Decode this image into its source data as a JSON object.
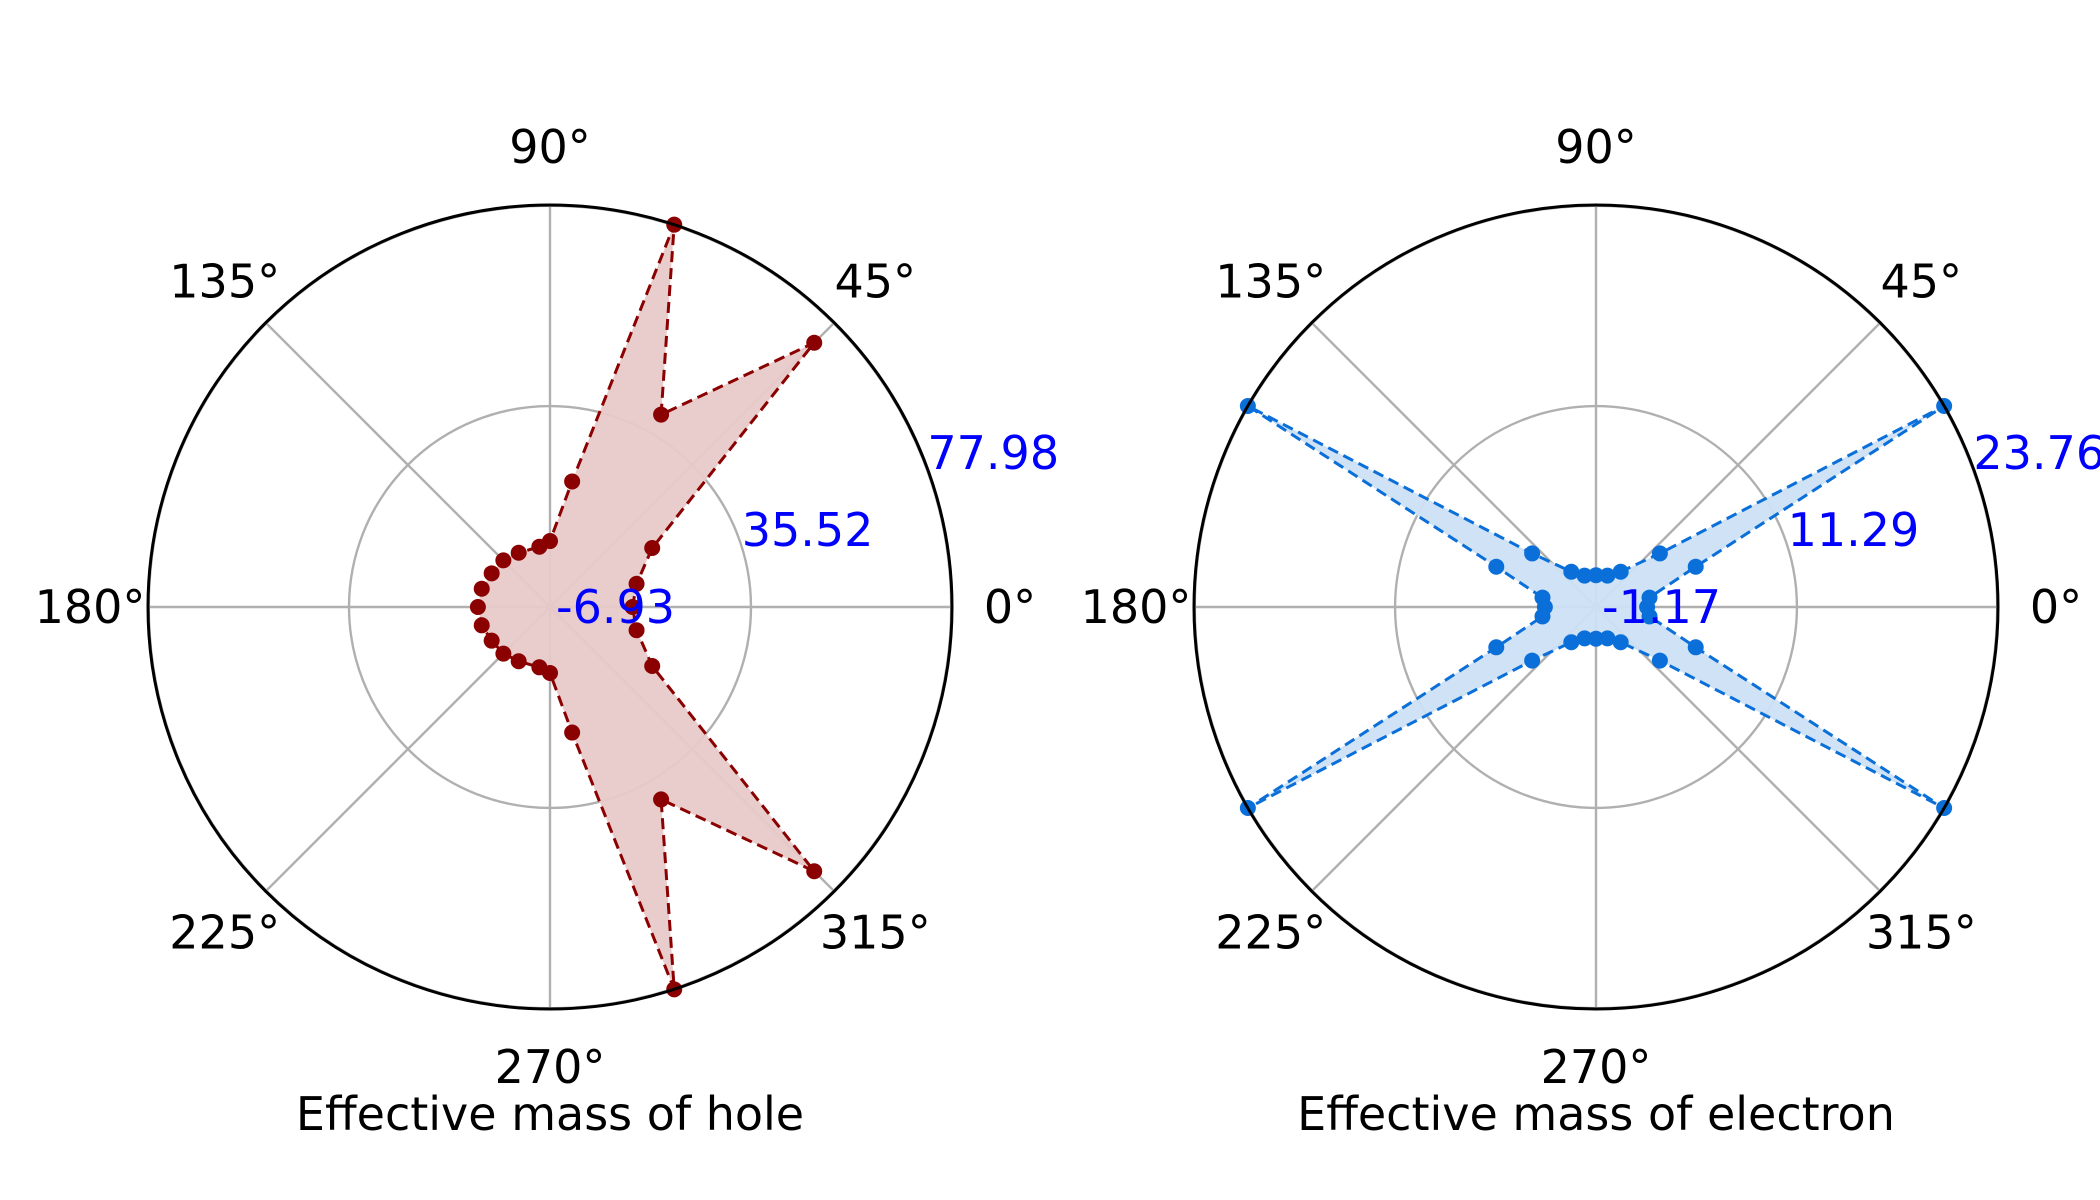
{
  "chart_data": [
    {
      "type": "polar",
      "xlabel": "Effective mass of hole",
      "angle_ticks": [
        "0°",
        "45°",
        "90°",
        "135°",
        "180°",
        "225°",
        "270°",
        "315°"
      ],
      "radial_ticks": [
        "-6.93",
        "35.52",
        "77.98"
      ],
      "rlim": [
        -6.93,
        77.98
      ],
      "grid": true,
      "line_color": "#8b0000",
      "fill_color": "#e8c9c9",
      "tick_label_color": "#0000ff",
      "points": [
        {
          "theta": 0,
          "r": 10.5
        },
        {
          "theta": 15,
          "r": 12.0
        },
        {
          "theta": 30,
          "r": 18.0
        },
        {
          "theta": 45,
          "r": 72.0
        },
        {
          "theta": 60,
          "r": 40.0
        },
        {
          "theta": 72,
          "r": 77.98
        },
        {
          "theta": 80,
          "r": 20.0
        },
        {
          "theta": 90,
          "r": 7.0
        },
        {
          "theta": 100,
          "r": 6.0
        },
        {
          "theta": 120,
          "r": 6.3
        },
        {
          "theta": 135,
          "r": 7.0
        },
        {
          "theta": 150,
          "r": 7.3
        },
        {
          "theta": 165,
          "r": 8.0
        },
        {
          "theta": 180,
          "r": 8.3
        },
        {
          "theta": 195,
          "r": 8.0
        },
        {
          "theta": 210,
          "r": 7.3
        },
        {
          "theta": 225,
          "r": 7.0
        },
        {
          "theta": 240,
          "r": 6.3
        },
        {
          "theta": 260,
          "r": 6.0
        },
        {
          "theta": 270,
          "r": 7.0
        },
        {
          "theta": 280,
          "r": 20.0
        },
        {
          "theta": 288,
          "r": 77.98
        },
        {
          "theta": 300,
          "r": 40.0
        },
        {
          "theta": 315,
          "r": 72.0
        },
        {
          "theta": 330,
          "r": 18.0
        },
        {
          "theta": 345,
          "r": 12.0
        }
      ]
    },
    {
      "type": "polar",
      "xlabel": "Effective mass of electron",
      "angle_ticks": [
        "0°",
        "45°",
        "90°",
        "135°",
        "180°",
        "225°",
        "270°",
        "315°"
      ],
      "radial_ticks": [
        "-1.17",
        "11.29",
        "23.76"
      ],
      "rlim": [
        -1.17,
        23.76
      ],
      "grid": true,
      "line_color": "#0a6fd8",
      "fill_color": "#cce0f5",
      "tick_label_color": "#0000ff",
      "points": [
        {
          "theta": 0,
          "r": 2.0
        },
        {
          "theta": 10,
          "r": 2.2
        },
        {
          "theta": 22,
          "r": 5.5
        },
        {
          "theta": 30,
          "r": 23.76
        },
        {
          "theta": 40,
          "r": 4.0
        },
        {
          "theta": 55,
          "r": 1.5
        },
        {
          "theta": 70,
          "r": 0.9
        },
        {
          "theta": 90,
          "r": 0.8
        },
        {
          "theta": 110,
          "r": 0.9
        },
        {
          "theta": 125,
          "r": 1.5
        },
        {
          "theta": 140,
          "r": 4.0
        },
        {
          "theta": 150,
          "r": 23.76
        },
        {
          "theta": 158,
          "r": 5.5
        },
        {
          "theta": 170,
          "r": 2.2
        },
        {
          "theta": 180,
          "r": 2.0
        },
        {
          "theta": 190,
          "r": 2.2
        },
        {
          "theta": 202,
          "r": 5.5
        },
        {
          "theta": 210,
          "r": 23.76
        },
        {
          "theta": 220,
          "r": 4.0
        },
        {
          "theta": 235,
          "r": 1.5
        },
        {
          "theta": 250,
          "r": 0.9
        },
        {
          "theta": 270,
          "r": 0.8
        },
        {
          "theta": 290,
          "r": 0.9
        },
        {
          "theta": 305,
          "r": 1.5
        },
        {
          "theta": 320,
          "r": 4.0
        },
        {
          "theta": 330,
          "r": 23.76
        },
        {
          "theta": 338,
          "r": 5.5
        },
        {
          "theta": 350,
          "r": 2.2
        }
      ]
    }
  ]
}
